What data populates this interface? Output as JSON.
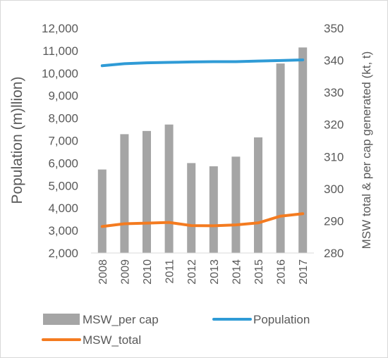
{
  "chart_data": {
    "type": "bar",
    "categories": [
      "2008",
      "2009",
      "2010",
      "2011",
      "2012",
      "2013",
      "2014",
      "2015",
      "2016",
      "2017"
    ],
    "left_axis": {
      "label": "Population (m)llion)",
      "min": 2000,
      "max": 12000,
      "step": 1000,
      "tick_labels": [
        "2,000",
        "3,000",
        "4,000",
        "5,000",
        "6,000",
        "7,000",
        "8,000",
        "9,000",
        "10,000",
        "11,000",
        "12,000"
      ]
    },
    "right_axis": {
      "label": "MSW total & per cap generated (kt, t)",
      "min": 280,
      "max": 350,
      "step": 10,
      "tick_labels": [
        "280",
        "290",
        "300",
        "310",
        "320",
        "330",
        "340",
        "350"
      ]
    },
    "series": [
      {
        "name": "MSW_per cap",
        "kind": "bar",
        "axis": "right",
        "color": "#a5a5a5",
        "values": [
          306,
          317,
          318,
          320,
          308,
          307,
          310,
          316,
          339,
          344
        ]
      },
      {
        "name": "Population",
        "kind": "line",
        "axis": "left",
        "color": "#2f9bd6",
        "values": [
          10330,
          10420,
          10460,
          10480,
          10500,
          10510,
          10510,
          10540,
          10560,
          10590
        ]
      },
      {
        "name": "MSW_total",
        "kind": "line",
        "axis": "left",
        "color": "#f47b20",
        "values": [
          3180,
          3300,
          3330,
          3360,
          3220,
          3210,
          3250,
          3340,
          3640,
          3750
        ]
      }
    ],
    "legend": {
      "placement": "bottom",
      "items": [
        "MSW_per cap",
        "Population",
        "MSW_total"
      ]
    },
    "grid": false
  }
}
